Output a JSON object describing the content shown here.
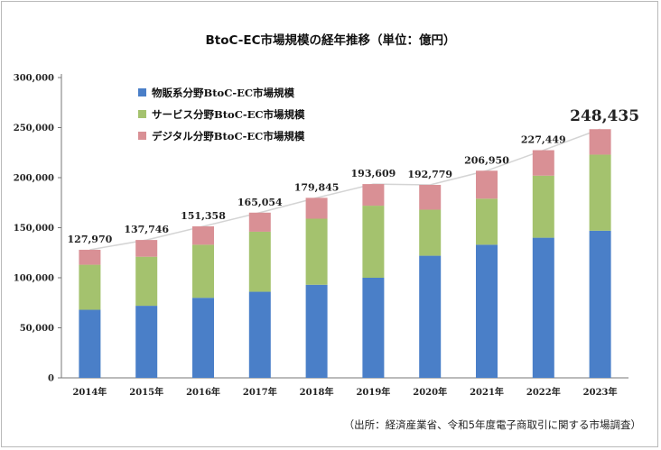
{
  "page": {
    "title": "BtoC-EC市場規模の経年推移（単位：億円）",
    "source": "（出所：経済産業省、令和5年度電子商取引に関する市場調査）"
  },
  "chart_data": {
    "type": "bar",
    "stacked": true,
    "title": "BtoC-EC市場規模の経年推移（単位：億円）",
    "xlabel": "",
    "ylabel": "",
    "ylim": [
      0,
      300000
    ],
    "yticks": [
      0,
      50000,
      100000,
      150000,
      200000,
      250000,
      300000
    ],
    "ytick_labels": [
      "0",
      "50,000",
      "100,000",
      "150,000",
      "200,000",
      "250,000",
      "300,000"
    ],
    "grid": false,
    "legend_position": "top-left",
    "categories": [
      "2014年",
      "2015年",
      "2016年",
      "2017年",
      "2018年",
      "2019年",
      "2020年",
      "2021年",
      "2022年",
      "2023年"
    ],
    "series": [
      {
        "name": "物販系分野BtoC-EC市場規模",
        "color": "#4a7fc8",
        "values": [
          68000,
          72000,
          80000,
          86000,
          93000,
          100000,
          122000,
          133000,
          140000,
          147000
        ]
      },
      {
        "name": "サービス分野BtoC-EC市場規模",
        "color": "#a4c26e",
        "values": [
          45000,
          49000,
          53000,
          60000,
          66000,
          72000,
          46000,
          46000,
          62000,
          76000
        ]
      },
      {
        "name": "デジタル分野BtoC-EC市場規模",
        "color": "#d99095",
        "values": [
          14970,
          16746,
          18358,
          19054,
          20845,
          21609,
          24779,
          27950,
          25449,
          25435
        ]
      }
    ],
    "totals": [
      127970,
      137746,
      151358,
      165054,
      179845,
      193609,
      192779,
      206950,
      227449,
      248435
    ],
    "total_labels": [
      "127,970",
      "137,746",
      "151,358",
      "165,054",
      "179,845",
      "193,609",
      "192,779",
      "206,950",
      "227,449",
      "248,435"
    ],
    "highlight_total_index": 9,
    "total_line_color": "#d4d4d4"
  }
}
